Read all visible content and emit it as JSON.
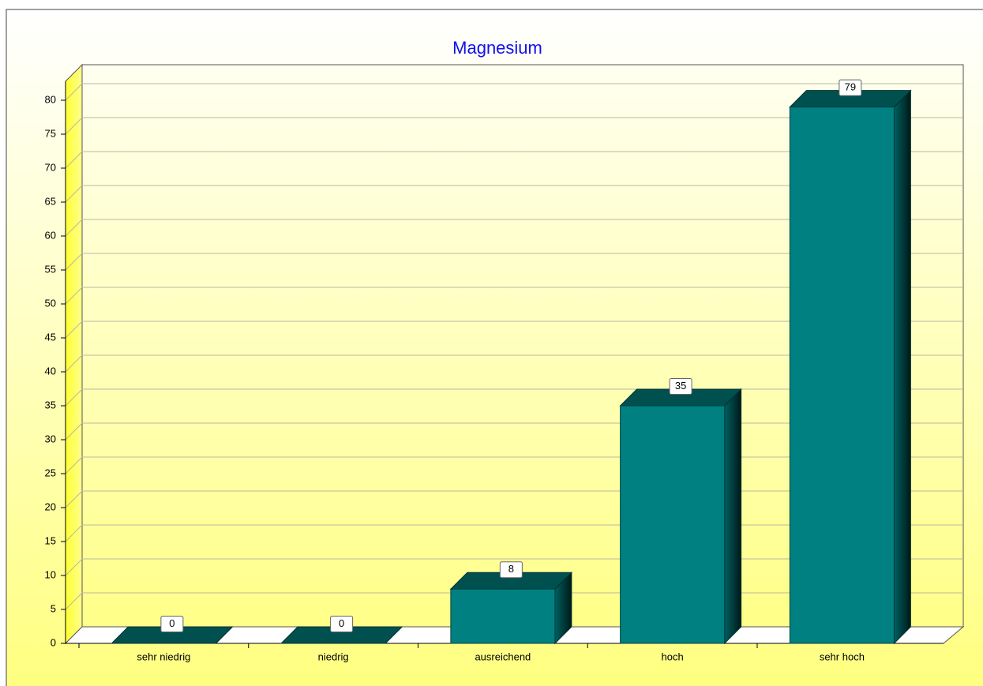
{
  "chart_data": {
    "type": "bar",
    "title": "Magnesium",
    "categories": [
      "sehr niedrig",
      "niedrig",
      "ausreichend",
      "hoch",
      "sehr hoch"
    ],
    "values": [
      0,
      0,
      8,
      35,
      79
    ],
    "color": "#008080",
    "ylim": [
      0,
      80
    ],
    "yticks": [
      0,
      5,
      10,
      15,
      20,
      25,
      30,
      35,
      40,
      45,
      50,
      55,
      60,
      65,
      70,
      75,
      80
    ],
    "grid": true
  }
}
